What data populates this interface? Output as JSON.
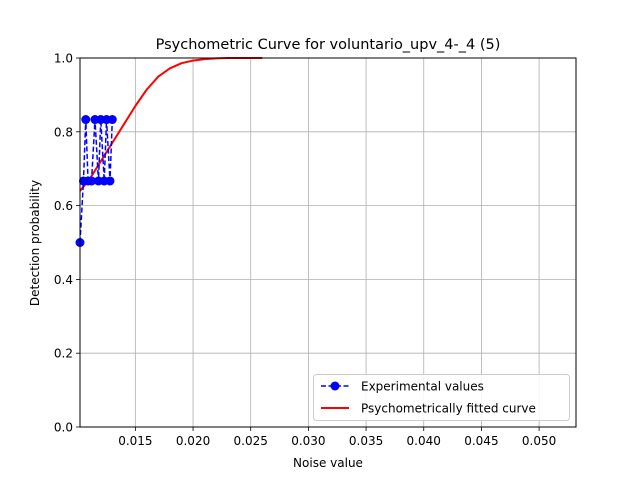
{
  "chart_data": {
    "type": "line",
    "title": "Psychometric Curve for voluntario_upv_4-_4 (5)",
    "xlabel": "Noise value",
    "ylabel": "Detection probability",
    "xlim": [
      0.0102,
      0.0532
    ],
    "ylim": [
      0.0,
      1.0
    ],
    "xticks": [
      0.015,
      0.02,
      0.025,
      0.03,
      0.035,
      0.04,
      0.045,
      0.05
    ],
    "xtick_labels": [
      "0.015",
      "0.020",
      "0.025",
      "0.030",
      "0.035",
      "0.040",
      "0.045",
      "0.050"
    ],
    "yticks": [
      0.0,
      0.2,
      0.4,
      0.6,
      0.8,
      1.0
    ],
    "ytick_labels": [
      "0.0",
      "0.2",
      "0.4",
      "0.6",
      "0.8",
      "1.0"
    ],
    "grid": true,
    "legend_position": "lower-right",
    "series": [
      {
        "name": "Experimental values",
        "style": "dashed-with-circle-markers",
        "color": "#0000ff",
        "x": [
          0.0102,
          0.0105,
          0.0107,
          0.0109,
          0.0112,
          0.0115,
          0.0118,
          0.012,
          0.0123,
          0.0125,
          0.0128,
          0.013
        ],
        "y": [
          0.5,
          0.6667,
          0.8333,
          0.6667,
          0.6667,
          0.8333,
          0.6667,
          0.8333,
          0.6667,
          0.8333,
          0.6667,
          0.8333
        ]
      },
      {
        "name": "Psychometrically fitted curve",
        "style": "solid",
        "color": "#ff0000",
        "x": [
          0.0102,
          0.011,
          0.012,
          0.013,
          0.014,
          0.015,
          0.016,
          0.017,
          0.018,
          0.019,
          0.02,
          0.021,
          0.022,
          0.023,
          0.024,
          0.025,
          0.026
        ],
        "y": [
          0.64,
          0.67,
          0.72,
          0.77,
          0.82,
          0.87,
          0.915,
          0.95,
          0.972,
          0.986,
          0.993,
          0.997,
          0.999,
          1.0,
          1.0,
          1.0,
          1.0
        ]
      }
    ]
  }
}
